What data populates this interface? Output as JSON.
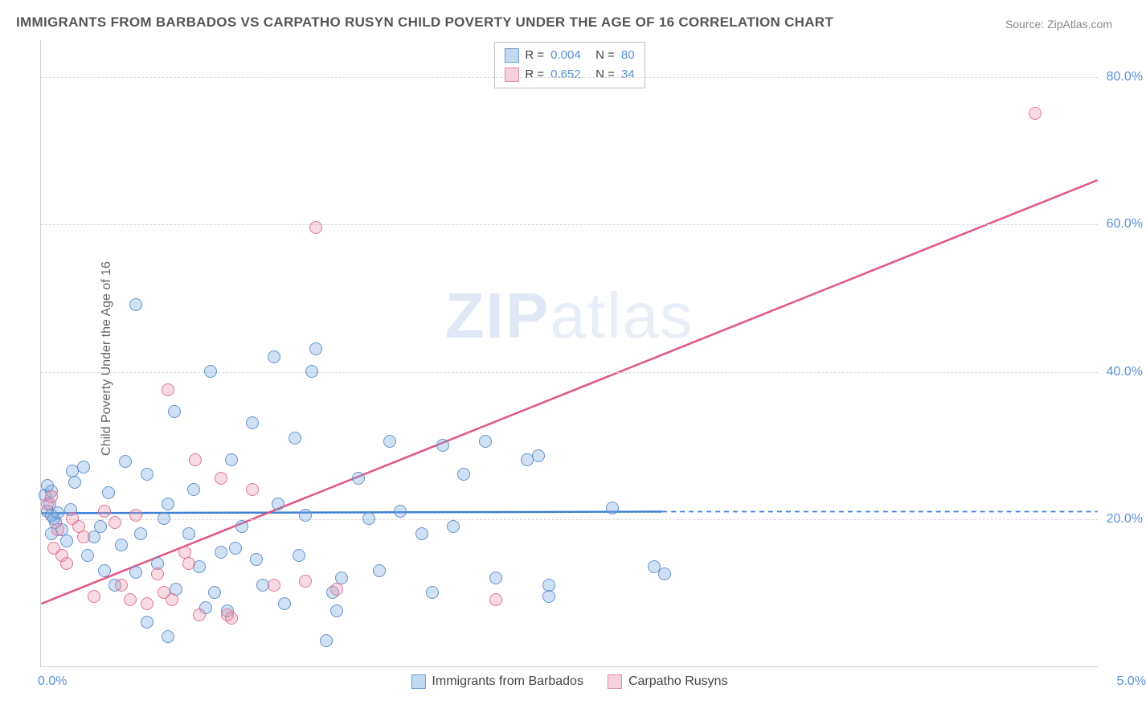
{
  "title": "IMMIGRANTS FROM BARBADOS VS CARPATHO RUSYN CHILD POVERTY UNDER THE AGE OF 16 CORRELATION CHART",
  "source": "Source: ZipAtlas.com",
  "ylabel": "Child Poverty Under the Age of 16",
  "watermark_zip": "ZIP",
  "watermark_atlas": "atlas",
  "chart": {
    "type": "scatter",
    "xlim": [
      0.0,
      5.0
    ],
    "ylim": [
      0.0,
      85.0
    ],
    "xticks": [
      {
        "v": 0.0,
        "label": "0.0%",
        "align": "left"
      },
      {
        "v": 5.0,
        "label": "5.0%",
        "align": "right"
      }
    ],
    "yticks": [
      20.0,
      40.0,
      60.0,
      80.0
    ],
    "grid_color": "#d8d8d8",
    "border_color": "#d0d0d0",
    "background_color": "#ffffff",
    "marker_radius": 8,
    "series": [
      {
        "name": "Immigrants from Barbados",
        "color_fill": "rgba(120,170,225,0.35)",
        "color_stroke": "rgba(90,140,200,0.9)",
        "r": "0.004",
        "n": "80",
        "trend": {
          "x1": 0.0,
          "y1": 20.8,
          "x2": 2.94,
          "y2": 21.0,
          "dash_after_x": 2.94,
          "dash_to_x": 5.0,
          "dash_y": 21.0,
          "stroke": "#3f7fd1",
          "width": 2.5
        },
        "points": [
          [
            0.02,
            23.2
          ],
          [
            0.03,
            24.5
          ],
          [
            0.04,
            22.0
          ],
          [
            0.05,
            23.8
          ],
          [
            0.03,
            21.0
          ],
          [
            0.05,
            18.0
          ],
          [
            0.07,
            19.5
          ],
          [
            0.05,
            20.5
          ],
          [
            0.06,
            20.1
          ],
          [
            0.08,
            20.8
          ],
          [
            0.1,
            18.5
          ],
          [
            0.12,
            17.0
          ],
          [
            0.14,
            21.2
          ],
          [
            0.15,
            26.5
          ],
          [
            0.16,
            25.0
          ],
          [
            0.2,
            27.0
          ],
          [
            0.22,
            15.0
          ],
          [
            0.25,
            17.5
          ],
          [
            0.28,
            19.0
          ],
          [
            0.3,
            13.0
          ],
          [
            0.32,
            23.5
          ],
          [
            0.35,
            11.0
          ],
          [
            0.38,
            16.5
          ],
          [
            0.4,
            27.8
          ],
          [
            0.45,
            49.0
          ],
          [
            0.45,
            12.8
          ],
          [
            0.47,
            18.0
          ],
          [
            0.5,
            26.0
          ],
          [
            0.5,
            6.0
          ],
          [
            0.55,
            14.0
          ],
          [
            0.58,
            20.0
          ],
          [
            0.6,
            4.0
          ],
          [
            0.6,
            22.0
          ],
          [
            0.63,
            34.5
          ],
          [
            0.64,
            10.5
          ],
          [
            0.7,
            18.0
          ],
          [
            0.72,
            24.0
          ],
          [
            0.75,
            13.5
          ],
          [
            0.78,
            8.0
          ],
          [
            0.8,
            40.0
          ],
          [
            0.82,
            10.0
          ],
          [
            0.85,
            15.5
          ],
          [
            0.88,
            7.5
          ],
          [
            0.9,
            28.0
          ],
          [
            0.92,
            16.0
          ],
          [
            0.95,
            19.0
          ],
          [
            1.0,
            33.0
          ],
          [
            1.02,
            14.5
          ],
          [
            1.05,
            11.0
          ],
          [
            1.1,
            42.0
          ],
          [
            1.12,
            22.0
          ],
          [
            1.15,
            8.5
          ],
          [
            1.2,
            31.0
          ],
          [
            1.22,
            15.0
          ],
          [
            1.25,
            20.5
          ],
          [
            1.28,
            40.0
          ],
          [
            1.3,
            43.0
          ],
          [
            1.35,
            3.5
          ],
          [
            1.38,
            10.0
          ],
          [
            1.4,
            7.5
          ],
          [
            1.42,
            12.0
          ],
          [
            1.5,
            25.5
          ],
          [
            1.55,
            20.0
          ],
          [
            1.6,
            13.0
          ],
          [
            1.65,
            30.5
          ],
          [
            1.7,
            21.0
          ],
          [
            1.8,
            18.0
          ],
          [
            1.85,
            10.0
          ],
          [
            1.9,
            30.0
          ],
          [
            1.95,
            19.0
          ],
          [
            2.0,
            26.0
          ],
          [
            2.1,
            30.5
          ],
          [
            2.15,
            12.0
          ],
          [
            2.3,
            28.0
          ],
          [
            2.35,
            28.5
          ],
          [
            2.4,
            9.5
          ],
          [
            2.7,
            21.5
          ],
          [
            2.9,
            13.5
          ],
          [
            2.95,
            12.5
          ],
          [
            2.4,
            11.0
          ]
        ]
      },
      {
        "name": "Carpatho Rusyns",
        "color_fill": "rgba(235,150,175,0.35)",
        "color_stroke": "rgba(220,110,150,0.9)",
        "r": "0.652",
        "n": "34",
        "trend": {
          "x1": 0.0,
          "y1": 8.5,
          "x2": 5.0,
          "y2": 66.0,
          "stroke": "#e25584",
          "width": 2.5
        },
        "points": [
          [
            0.03,
            22.0
          ],
          [
            0.05,
            23.0
          ],
          [
            0.06,
            16.0
          ],
          [
            0.08,
            18.5
          ],
          [
            0.1,
            15.0
          ],
          [
            0.12,
            14.0
          ],
          [
            0.15,
            20.0
          ],
          [
            0.18,
            19.0
          ],
          [
            0.2,
            17.5
          ],
          [
            0.25,
            9.5
          ],
          [
            0.3,
            21.0
          ],
          [
            0.35,
            19.5
          ],
          [
            0.38,
            11.0
          ],
          [
            0.42,
            9.0
          ],
          [
            0.45,
            20.5
          ],
          [
            0.5,
            8.5
          ],
          [
            0.55,
            12.5
          ],
          [
            0.58,
            10.0
          ],
          [
            0.6,
            37.5
          ],
          [
            0.62,
            9.0
          ],
          [
            0.68,
            15.5
          ],
          [
            0.7,
            14.0
          ],
          [
            0.73,
            28.0
          ],
          [
            0.75,
            7.0
          ],
          [
            0.85,
            25.5
          ],
          [
            0.88,
            7.0
          ],
          [
            0.9,
            6.5
          ],
          [
            1.0,
            24.0
          ],
          [
            1.1,
            11.0
          ],
          [
            1.25,
            11.5
          ],
          [
            1.3,
            59.5
          ],
          [
            1.4,
            10.5
          ],
          [
            2.15,
            9.0
          ],
          [
            4.7,
            75.0
          ]
        ]
      }
    ]
  },
  "legend_top": [
    {
      "swatch": "blue",
      "r_label": "R =",
      "r_val": "0.004",
      "n_label": "N =",
      "n_val": "80"
    },
    {
      "swatch": "pink",
      "r_label": "R =",
      "r_val": "0.652",
      "n_label": "N =",
      "n_val": "34"
    }
  ],
  "legend_bottom": [
    {
      "swatch": "blue",
      "label": "Immigrants from Barbados"
    },
    {
      "swatch": "pink",
      "label": "Carpatho Rusyns"
    }
  ]
}
